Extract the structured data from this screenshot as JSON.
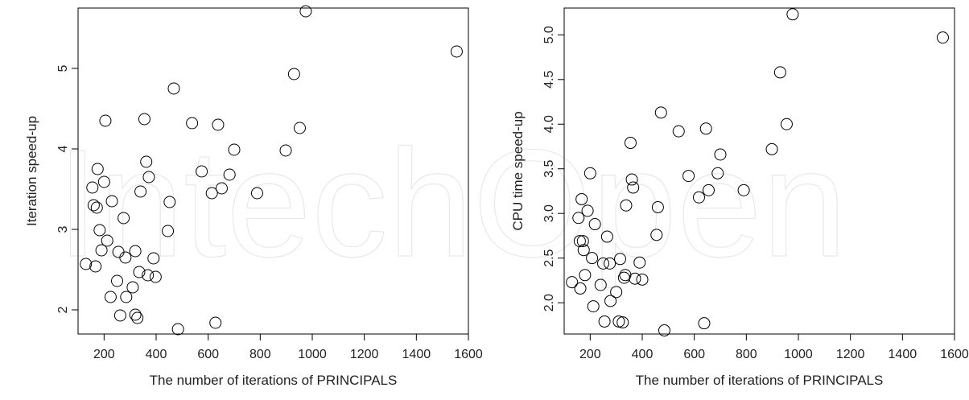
{
  "watermark": "IntechOpen",
  "chart_data": [
    {
      "type": "scatter",
      "title": "",
      "xlabel": "The number of iterations of PRINCIPALS",
      "ylabel": "Iteration speed-up",
      "xlim": [
        100,
        1600
      ],
      "ylim": [
        1.7,
        5.75
      ],
      "xticks": [
        200,
        400,
        600,
        800,
        1000,
        1200,
        1400,
        1600
      ],
      "yticks": [
        2,
        3,
        4,
        5
      ],
      "grid": false,
      "points": [
        [
          130,
          2.57
        ],
        [
          155,
          3.52
        ],
        [
          160,
          3.3
        ],
        [
          167,
          2.54
        ],
        [
          172,
          3.27
        ],
        [
          175,
          3.75
        ],
        [
          183,
          2.99
        ],
        [
          190,
          2.74
        ],
        [
          200,
          3.59
        ],
        [
          205,
          4.35
        ],
        [
          212,
          2.86
        ],
        [
          225,
          2.16
        ],
        [
          230,
          3.35
        ],
        [
          250,
          2.36
        ],
        [
          255,
          2.72
        ],
        [
          262,
          1.93
        ],
        [
          275,
          3.14
        ],
        [
          282,
          2.65
        ],
        [
          285,
          2.16
        ],
        [
          310,
          2.28
        ],
        [
          320,
          2.73
        ],
        [
          320,
          1.94
        ],
        [
          328,
          1.9
        ],
        [
          335,
          2.47
        ],
        [
          340,
          3.47
        ],
        [
          355,
          4.37
        ],
        [
          362,
          3.84
        ],
        [
          368,
          2.43
        ],
        [
          372,
          3.65
        ],
        [
          390,
          2.64
        ],
        [
          398,
          2.41
        ],
        [
          445,
          2.98
        ],
        [
          452,
          3.34
        ],
        [
          468,
          4.75
        ],
        [
          484,
          1.76
        ],
        [
          538,
          4.32
        ],
        [
          575,
          3.72
        ],
        [
          614,
          3.45
        ],
        [
          628,
          1.84
        ],
        [
          638,
          4.3
        ],
        [
          652,
          3.51
        ],
        [
          682,
          3.68
        ],
        [
          700,
          3.99
        ],
        [
          788,
          3.45
        ],
        [
          898,
          3.98
        ],
        [
          930,
          4.93
        ],
        [
          952,
          4.26
        ],
        [
          975,
          5.71
        ],
        [
          1555,
          5.21
        ]
      ]
    },
    {
      "type": "scatter",
      "title": "",
      "xlabel": "The number of iterations of PRINCIPALS",
      "ylabel": "CPU time speed-up",
      "xlim": [
        100,
        1600
      ],
      "ylim": [
        1.65,
        5.3
      ],
      "xticks": [
        200,
        400,
        600,
        800,
        1000,
        1200,
        1400,
        1600
      ],
      "yticks": [
        2.0,
        2.5,
        3.0,
        3.5,
        4.0,
        4.5,
        5.0
      ],
      "ytick_labels": [
        "2.0",
        "2.5",
        "3.0",
        "3.5",
        "4.0",
        "4.5",
        "5.0"
      ],
      "grid": false,
      "points": [
        [
          130,
          2.23
        ],
        [
          155,
          2.95
        ],
        [
          160,
          2.69
        ],
        [
          162,
          2.16
        ],
        [
          167,
          3.16
        ],
        [
          172,
          2.69
        ],
        [
          175,
          2.59
        ],
        [
          180,
          2.31
        ],
        [
          190,
          3.03
        ],
        [
          200,
          3.45
        ],
        [
          207,
          2.5
        ],
        [
          212,
          1.96
        ],
        [
          218,
          2.88
        ],
        [
          240,
          2.2
        ],
        [
          250,
          2.44
        ],
        [
          255,
          1.79
        ],
        [
          265,
          2.74
        ],
        [
          275,
          2.44
        ],
        [
          278,
          2.02
        ],
        [
          300,
          2.12
        ],
        [
          310,
          1.79
        ],
        [
          315,
          2.49
        ],
        [
          325,
          1.78
        ],
        [
          330,
          2.28
        ],
        [
          335,
          2.31
        ],
        [
          338,
          3.09
        ],
        [
          355,
          3.79
        ],
        [
          360,
          3.38
        ],
        [
          365,
          3.29
        ],
        [
          372,
          2.27
        ],
        [
          390,
          2.45
        ],
        [
          400,
          2.26
        ],
        [
          455,
          2.76
        ],
        [
          460,
          3.07
        ],
        [
          472,
          4.13
        ],
        [
          485,
          1.69
        ],
        [
          540,
          3.92
        ],
        [
          578,
          3.42
        ],
        [
          618,
          3.18
        ],
        [
          638,
          1.77
        ],
        [
          645,
          3.95
        ],
        [
          655,
          3.26
        ],
        [
          690,
          3.45
        ],
        [
          700,
          3.66
        ],
        [
          790,
          3.26
        ],
        [
          898,
          3.72
        ],
        [
          930,
          4.58
        ],
        [
          955,
          4.0
        ],
        [
          978,
          5.23
        ],
        [
          1555,
          4.97
        ]
      ]
    }
  ]
}
